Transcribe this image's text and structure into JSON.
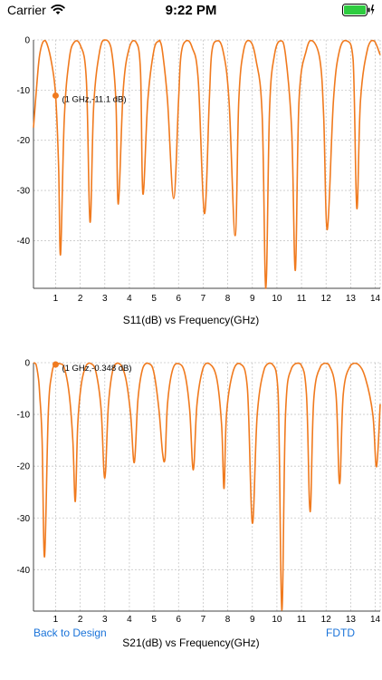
{
  "status_bar": {
    "carrier": "Carrier",
    "time": "9:22 PM"
  },
  "nav": {
    "back_label": "Back to Design",
    "fdtd_label": "FDTD"
  },
  "colors": {
    "trace": "#f07a1e",
    "grid": "#c8c8c8",
    "link": "#1a73d9"
  },
  "chart_data": [
    {
      "type": "line",
      "title": "S11(dB) vs Frequency(GHz)",
      "xlabel": "Frequency(GHz)",
      "ylabel": "S11(dB)",
      "xlim": [
        0.1,
        14.2
      ],
      "ylim": [
        -49.5,
        0
      ],
      "xticks": [
        1,
        2,
        3,
        4,
        5,
        6,
        7,
        8,
        9,
        10,
        11,
        12,
        13,
        14
      ],
      "yticks": [
        0,
        -10,
        -20,
        -30,
        -40
      ],
      "grid": true,
      "series": [
        {
          "x": [
            0.1,
            0.25,
            0.35,
            0.5,
            0.65,
            0.85,
            1.0,
            1.12,
            1.2,
            1.35,
            1.55,
            1.75,
            2.0,
            2.25,
            2.4,
            2.55,
            2.8,
            3.0,
            3.25,
            3.45,
            3.55,
            3.75,
            4.0,
            4.25,
            4.45,
            4.55,
            4.75,
            5.0,
            5.2,
            5.25,
            5.35,
            5.55,
            5.8,
            6.0,
            6.1,
            6.3,
            6.55,
            6.8,
            7.05,
            7.25,
            7.35,
            7.55,
            7.8,
            8.05,
            8.3,
            8.45,
            8.65,
            8.9,
            9.15,
            9.4,
            9.55,
            9.7,
            9.9,
            10.15,
            10.35,
            10.6,
            10.75,
            10.9,
            11.2,
            11.45,
            11.75,
            11.9,
            12.05,
            12.3,
            12.55,
            12.85,
            13.1,
            13.25,
            13.4,
            13.7,
            13.95,
            14.2
          ],
          "y": [
            -17.5,
            -8,
            -3,
            -0.3,
            -0.8,
            -5,
            -11.1,
            -25,
            -42.8,
            -16,
            -4,
            -0.5,
            -1,
            -8,
            -36.3,
            -13,
            -2,
            0,
            -1.5,
            -12,
            -32.7,
            -10,
            -1.5,
            -0.3,
            -6,
            -30.7,
            -12,
            -2,
            -0.2,
            -0.3,
            -2.5,
            -12,
            -31.6,
            -12,
            -3,
            -0.2,
            -1.5,
            -8,
            -34.6,
            -12,
            -2.5,
            -0.2,
            -2,
            -12,
            -39,
            -12,
            -2,
            -0.2,
            -4,
            -15,
            -49.5,
            -14,
            -3,
            -0.2,
            -3,
            -18,
            -45.9,
            -12,
            -2,
            -0.2,
            -4,
            -15,
            -37.8,
            -12,
            -2,
            -0.2,
            -4,
            -33.6,
            -12,
            -1.5,
            -0.2,
            -3
          ]
        }
      ],
      "annotation": {
        "x": 1,
        "y": -11.1,
        "label": "(1 GHz,-11.1 dB)"
      }
    },
    {
      "type": "line",
      "title": "S21(dB) vs Frequency(GHz)",
      "xlabel": "Frequency(GHz)",
      "ylabel": "S21(dB)",
      "xlim": [
        0.1,
        14.2
      ],
      "ylim": [
        -48,
        0
      ],
      "xticks": [
        1,
        2,
        3,
        4,
        5,
        6,
        7,
        8,
        9,
        10,
        11,
        12,
        13,
        14
      ],
      "yticks": [
        0,
        -10,
        -20,
        -30,
        -40
      ],
      "grid": true,
      "series": [
        {
          "x": [
            0.1,
            0.2,
            0.3,
            0.35,
            0.45,
            0.55,
            0.7,
            0.85,
            1.0,
            1.15,
            1.35,
            1.55,
            1.7,
            1.8,
            1.9,
            2.05,
            2.25,
            2.45,
            2.65,
            2.85,
            3.0,
            3.15,
            3.35,
            3.6,
            3.85,
            4.05,
            4.2,
            4.35,
            4.55,
            4.8,
            5.0,
            5.2,
            5.35,
            5.45,
            5.55,
            5.75,
            6.0,
            6.25,
            6.45,
            6.6,
            6.75,
            7.0,
            7.25,
            7.55,
            7.75,
            7.85,
            7.95,
            8.2,
            8.5,
            8.8,
            9.0,
            9.2,
            9.5,
            9.8,
            10.05,
            10.2,
            10.35,
            10.6,
            10.95,
            11.2,
            11.35,
            11.5,
            11.8,
            12.1,
            12.4,
            12.55,
            12.7,
            13.0,
            13.3,
            13.6,
            13.9,
            14.05,
            14.2
          ],
          "y": [
            0,
            -0.3,
            -3,
            -6,
            -15,
            -37.5,
            -10,
            -2,
            -0.35,
            -0.2,
            -1,
            -6,
            -15,
            -26.8,
            -12,
            -4,
            -0.5,
            -0.2,
            -2,
            -9,
            -22.3,
            -8,
            -1,
            -0.2,
            -3,
            -10,
            -19.3,
            -7,
            -1,
            -0.2,
            -2,
            -9,
            -17.5,
            -18.6,
            -8,
            -1.5,
            -0.2,
            -2,
            -9,
            -20.7,
            -8,
            -1,
            -0.2,
            -3,
            -12,
            -24.3,
            -10,
            -2,
            -0.2,
            -5,
            -31,
            -10,
            -1,
            -0.2,
            -6,
            -47.8,
            -10,
            -1,
            -0.2,
            -6,
            -28.8,
            -7,
            -0.5,
            -0.3,
            -6,
            -23.4,
            -6,
            -0.5,
            -0.3,
            -3,
            -10,
            -20.1,
            -8
          ]
        }
      ],
      "annotation": {
        "x": 1,
        "y": -0.348,
        "label": "(1 GHz,-0.348 dB)"
      }
    }
  ]
}
